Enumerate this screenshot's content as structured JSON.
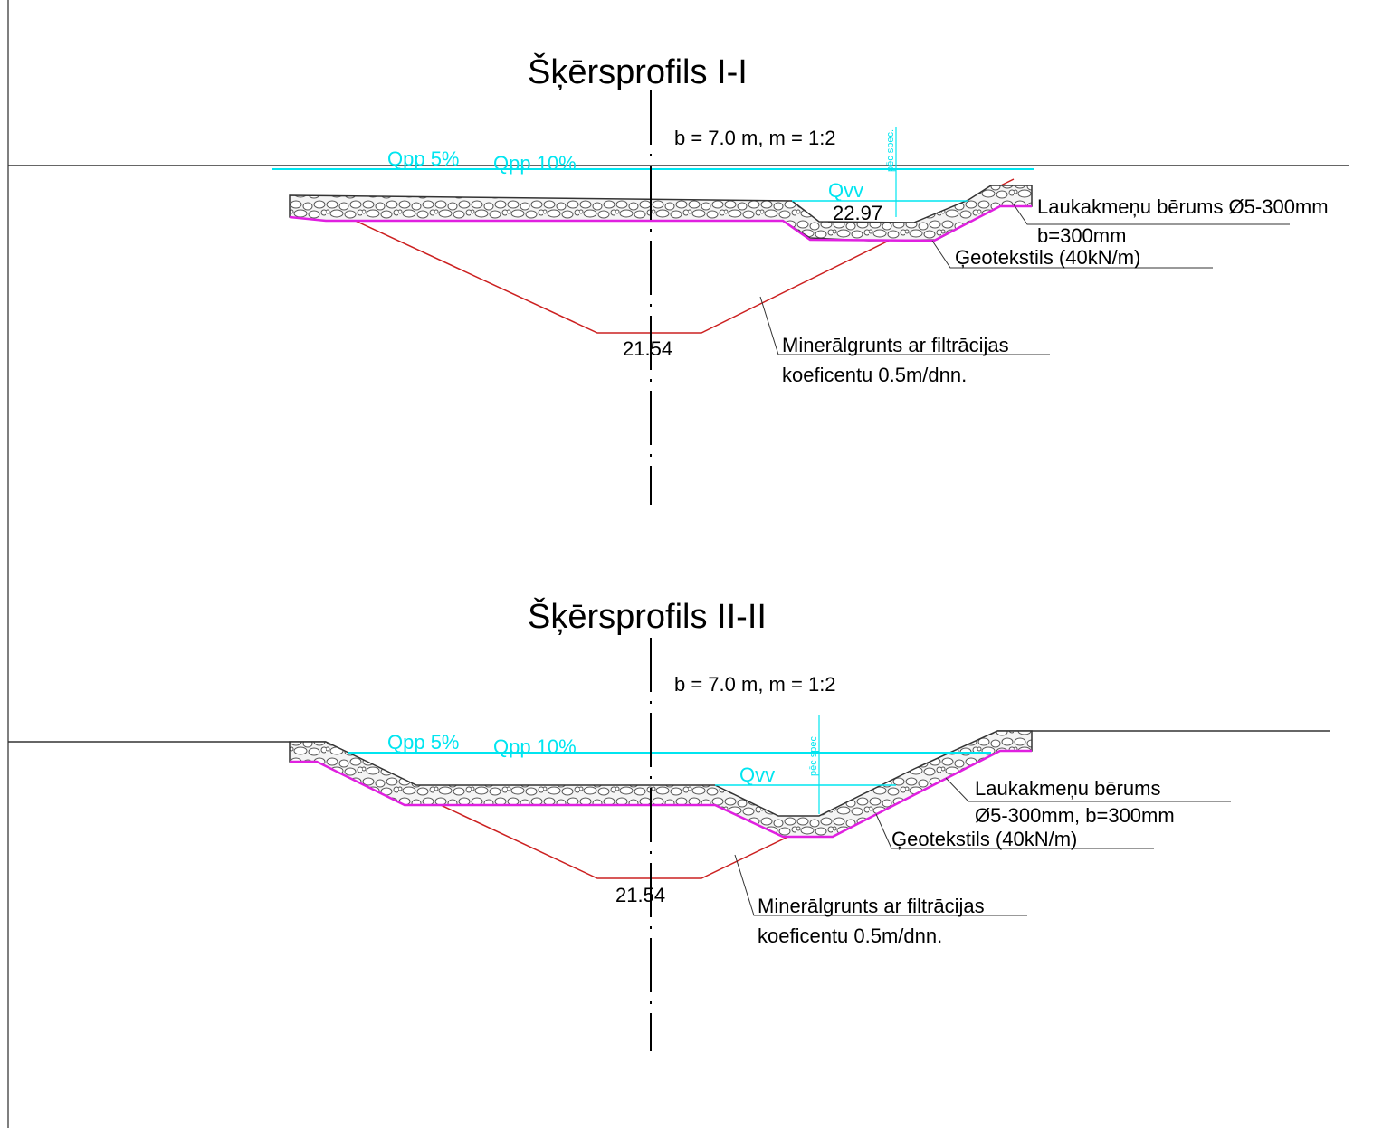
{
  "colors": {
    "water": "#00e5f0",
    "geotextile": "#e020e0",
    "mineral": "#cc2020",
    "ground": "#333333"
  },
  "profile1": {
    "title": "Šķērsprofils I-I",
    "dims": "b = 7.0 m, m = 1:2",
    "qpp5": "Qpp 5%",
    "qpp10": "Qpp 10%",
    "qvv": "Qvv",
    "level_top": "22.97",
    "level_bottom": "21.54",
    "spec": "pēc spec.",
    "stone_fill_l1": "Laukakmeņu bērums Ø5-300mm",
    "stone_fill_l2": "b=300mm",
    "geotextile": "Ģeotekstils  (40kN/m)",
    "mineral_l1": "Minerālgrunts ar filtrācijas",
    "mineral_l2": "koeficentu 0.5m/dnn."
  },
  "profile2": {
    "title": "Šķērsprofils II-II",
    "dims": "b = 7.0 m, m = 1:2",
    "qpp5": "Qpp 5%",
    "qpp10": "Qpp 10%",
    "qvv": "Qvv",
    "level_bottom": "21.54",
    "spec": "pēc spec.",
    "stone_fill_l1": "Laukakmeņu bērums",
    "stone_fill_l2": "Ø5-300mm, b=300mm",
    "geotextile": "Ģeotekstils  (40kN/m)",
    "mineral_l1": "Minerālgrunts ar filtrācijas",
    "mineral_l2": "koeficentu 0.5m/dnn."
  }
}
